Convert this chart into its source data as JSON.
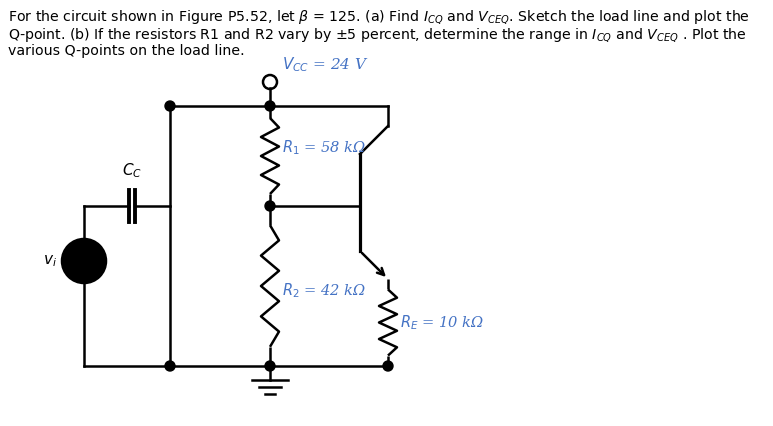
{
  "line1": "For the circuit shown in Figure P5.52, let $\\beta$ = 125. (a) Find $I_{CQ}$ and $V_{CEQ}$. Sketch the load line and plot the",
  "line2": "Q-point. (b) If the resistors R1 and R2 vary by $\\pm$5 percent, determine the range in $I_{CQ}$ and $V_{CEQ}$ . Plot the",
  "line3": "various Q-points on the load line.",
  "vcc_label": "$V_{CC}$ = 24 V",
  "R1_label": "$R_1$ = 58 kΩ",
  "R2_label": "$R_2$ = 42 kΩ",
  "RE_label": "$R_E$ = 10 kΩ",
  "CC_label": "$C_C$",
  "vi_label": "$v_i$",
  "bg_color": "#ffffff",
  "line_color": "#000000",
  "label_color": "#4472c4",
  "vi_fill": "#f4b8c1",
  "font_size_text": 10.5,
  "font_size_label": 10.5
}
